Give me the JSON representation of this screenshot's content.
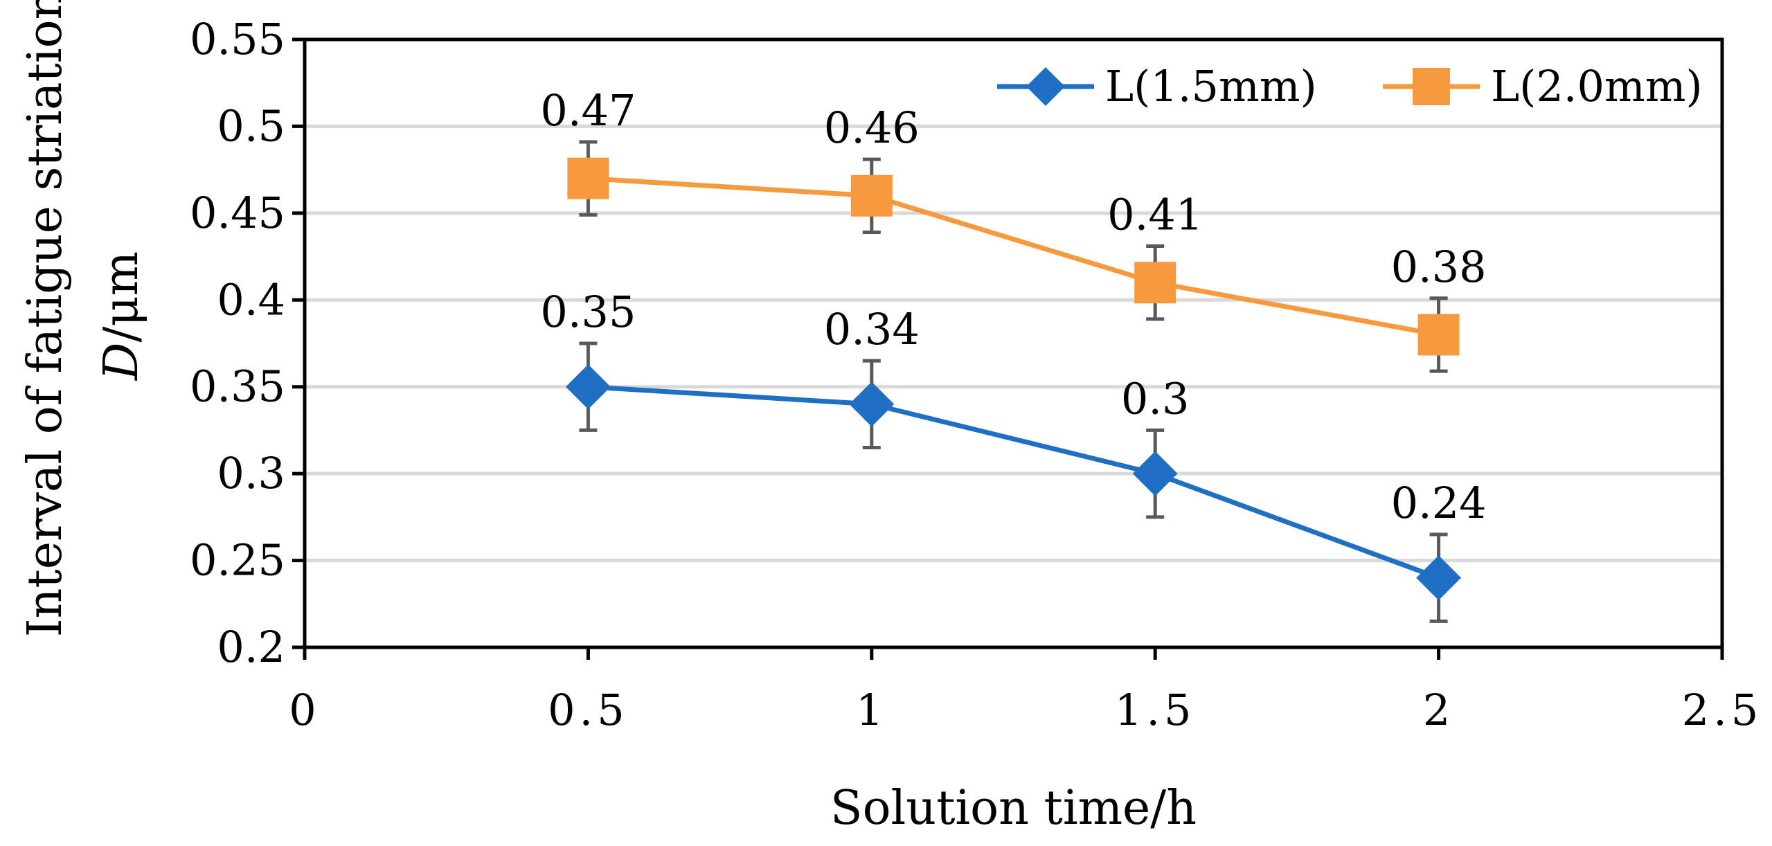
{
  "chart_data": {
    "type": "line",
    "title": "",
    "xlabel": "Solution time/h",
    "ylabel_line1": "Interval of fatigue striation-",
    "ylabel_line2_italic": "D",
    "ylabel_line2_rest": "/μm",
    "xlim": [
      0,
      2.5
    ],
    "ylim": [
      0.2,
      0.55
    ],
    "x_ticks": [
      0,
      0.5,
      1,
      1.5,
      2,
      2.5
    ],
    "x_tick_labels": [
      "0",
      "0.5",
      "1",
      "1.5",
      "2",
      "2.5"
    ],
    "y_ticks": [
      0.2,
      0.25,
      0.3,
      0.35,
      0.4,
      0.45,
      0.5,
      0.55
    ],
    "y_tick_labels": [
      "0.2",
      "0.25",
      "0.3",
      "0.35",
      "0.4",
      "0.45",
      "0.5",
      "0.55"
    ],
    "grid": true,
    "legend_position": "top-right",
    "series": [
      {
        "name": "L(1.5mm)",
        "color": "#1F6FC5",
        "marker": "diamond",
        "x": [
          0.5,
          1,
          1.5,
          2
        ],
        "values": [
          0.35,
          0.34,
          0.3,
          0.24
        ],
        "error": [
          0.025,
          0.025,
          0.025,
          0.025
        ],
        "labels": [
          "0.35",
          "0.34",
          "0.3",
          "0.24"
        ]
      },
      {
        "name": "L(2.0mm)",
        "color": "#F79A3E",
        "marker": "square",
        "x": [
          0.5,
          1,
          1.5,
          2
        ],
        "values": [
          0.47,
          0.46,
          0.41,
          0.38
        ],
        "error": [
          0.021,
          0.021,
          0.021,
          0.021
        ],
        "labels": [
          "0.47",
          "0.46",
          "0.41",
          "0.38"
        ]
      }
    ]
  }
}
